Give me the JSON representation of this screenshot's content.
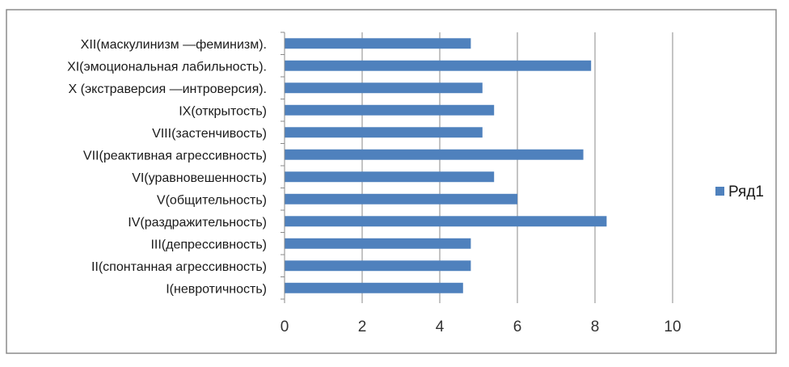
{
  "chart_data": {
    "type": "bar",
    "orientation": "horizontal",
    "categories": [
      "XII(маскулинизм —феминизм).",
      "XI(эмоциональная лабильность).",
      "X (экстраверсия —интроверсия).",
      "IX(открытость)",
      "VIII(застенчивость)",
      "VII(реактивная агрессивность)",
      "VI(уравновешенность)",
      "V(общительность)",
      "IV(раздражительность)",
      "III(депрессивность)",
      "II(спонтанная агрессивность)",
      "I(невротичность)"
    ],
    "series": [
      {
        "name": "Ряд1",
        "color": "#4f81bd",
        "values": [
          4.8,
          7.9,
          5.1,
          5.4,
          5.1,
          7.7,
          5.4,
          6.0,
          8.3,
          4.8,
          4.8,
          4.6
        ]
      }
    ],
    "x_ticks": [
      "0",
      "2",
      "4",
      "6",
      "8",
      "10"
    ],
    "xlim": [
      0,
      10
    ],
    "grid": "vertical",
    "legend_position": "right",
    "title": "",
    "xlabel": "",
    "ylabel": ""
  }
}
